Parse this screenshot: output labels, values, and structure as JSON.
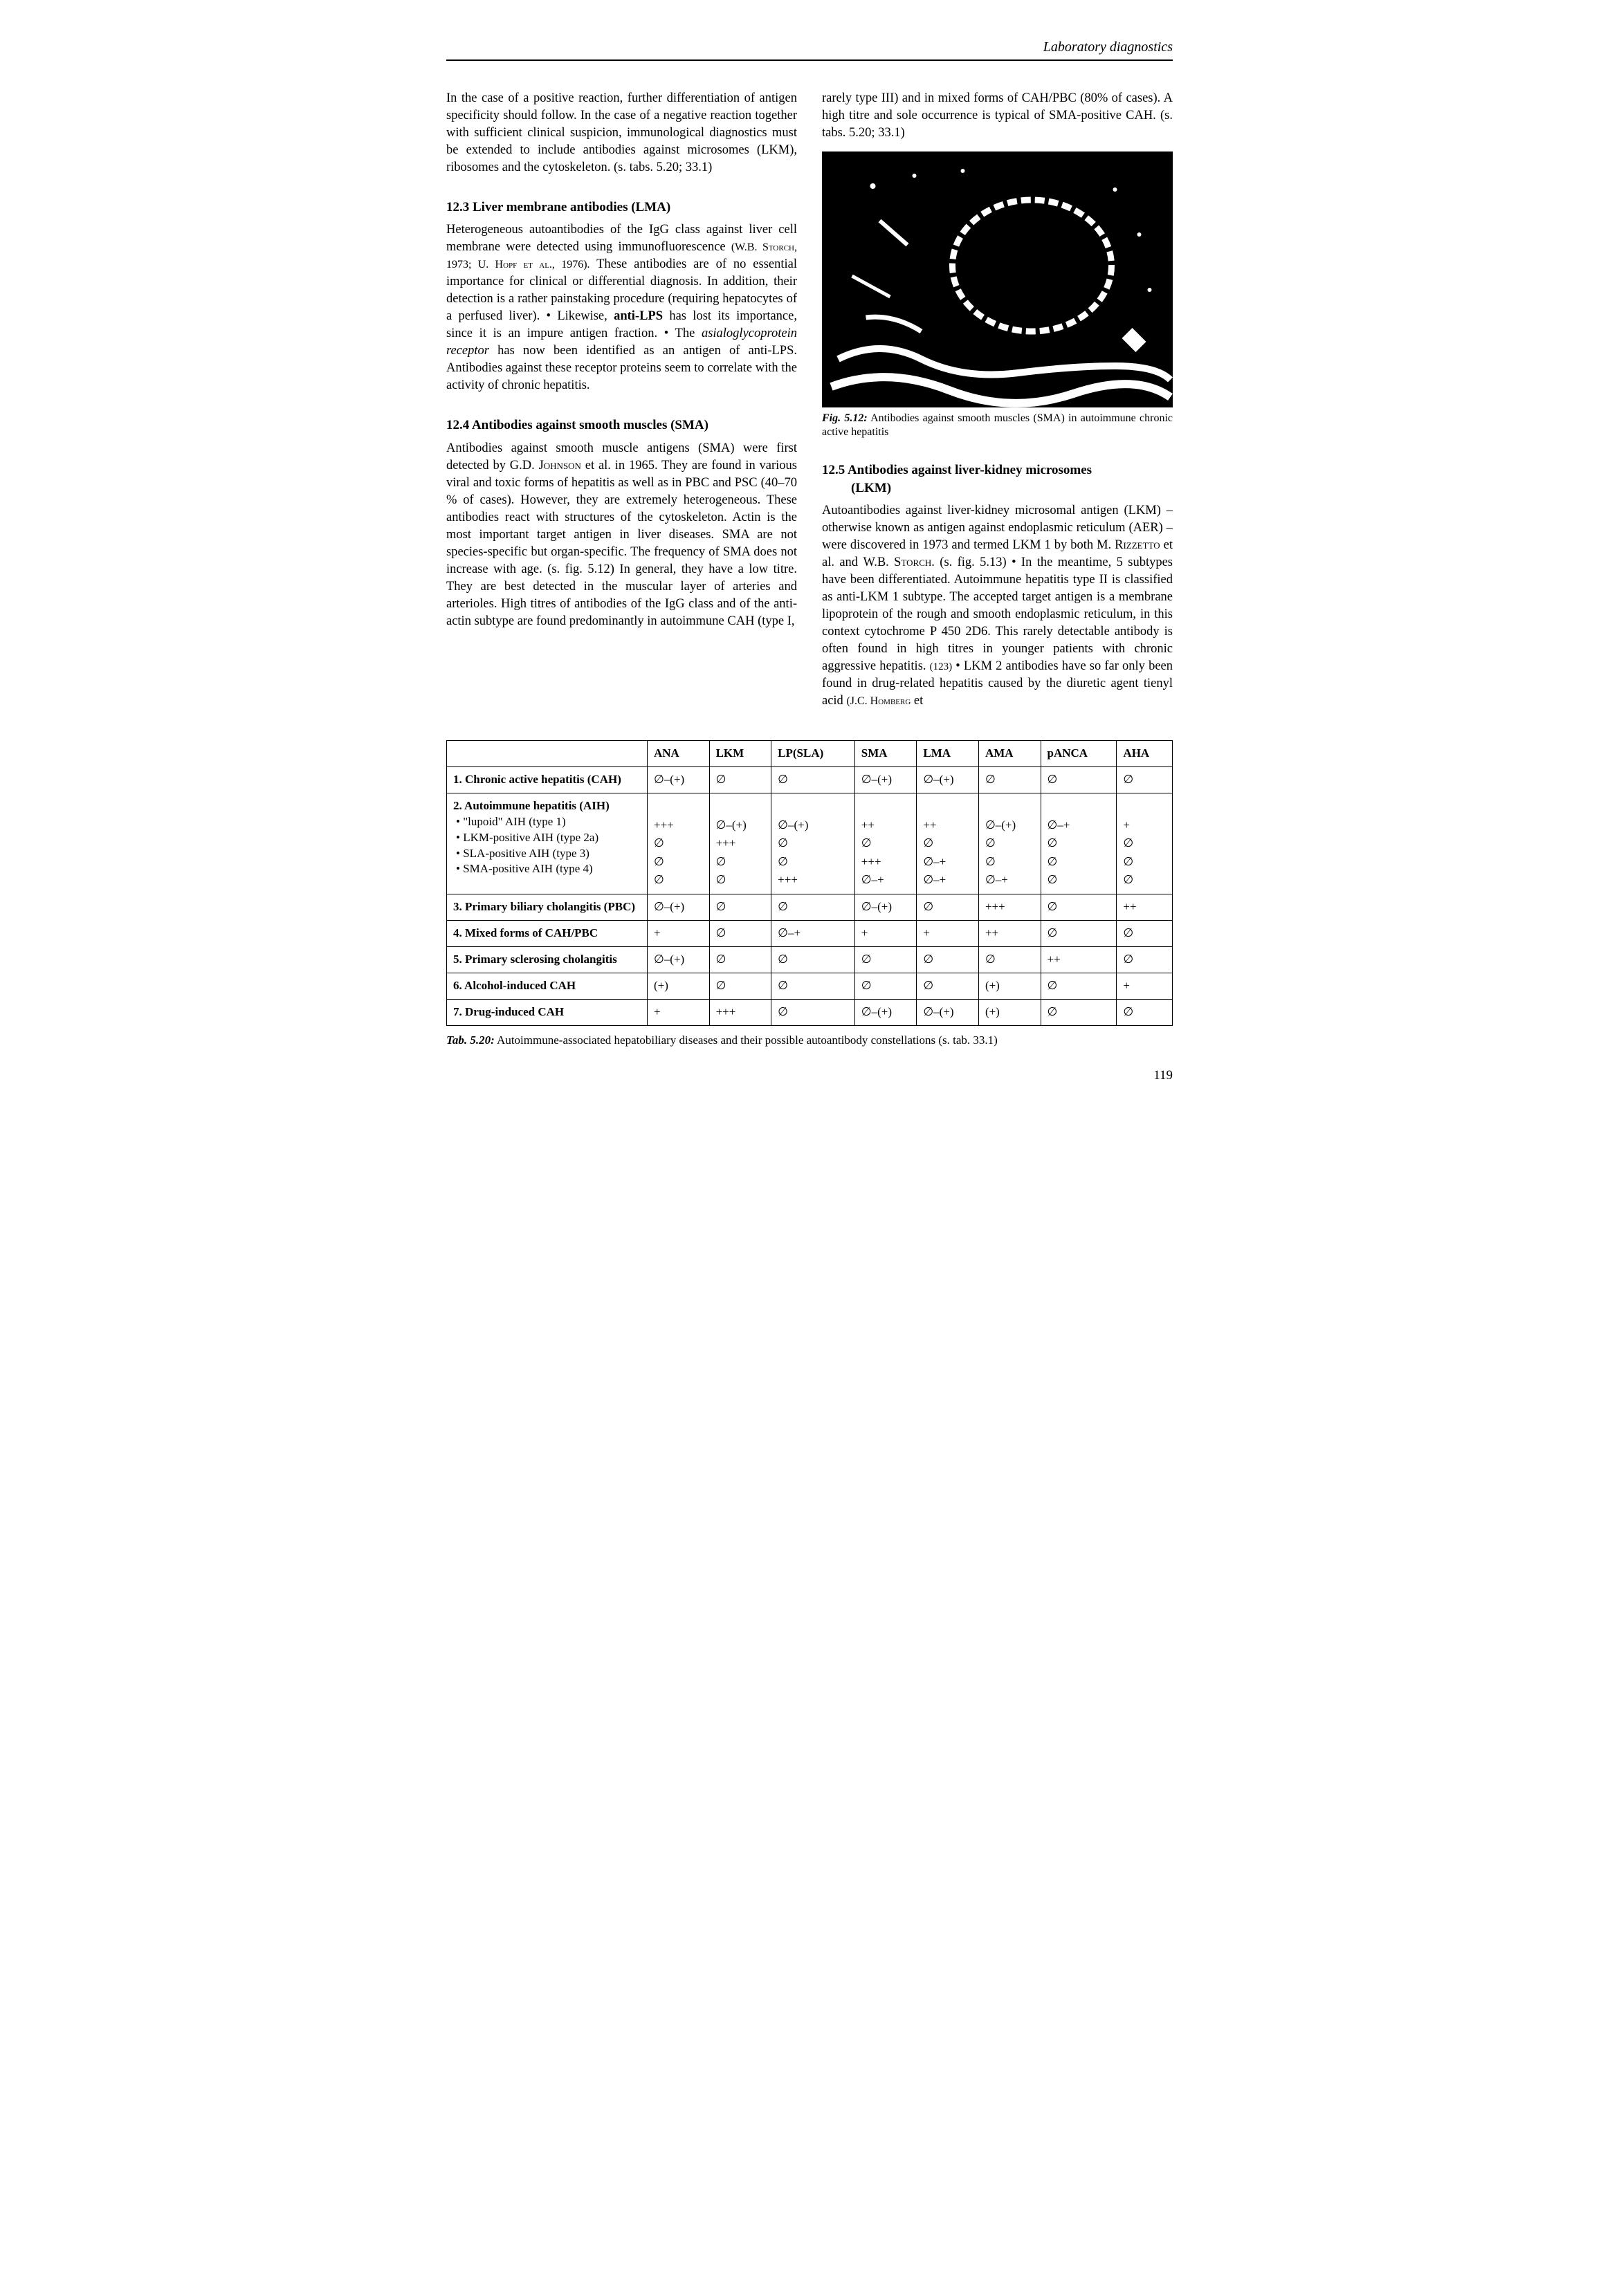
{
  "running_head": "Laboratory diagnostics",
  "page_number": "119",
  "left": {
    "intro": "In the case of a positive reaction, further differentiation of antigen specificity should follow. In the case of a negative reaction together with sufficient clinical suspicion, immunological diagnostics must be extended to include antibodies against microsomes (LKM), ribosomes and the cytoskeleton. (s. tabs. 5.20; 33.1)",
    "h1": "12.3  Liver membrane antibodies (LMA)",
    "p1a": "Heterogeneous autoantibodies of the IgG class against liver cell membrane were detected using immunofluorescence ",
    "p1_ref": "(W.B. Storch, 1973; U. Hopf et al., 1976).",
    "p1b": " These antibodies are of no essential importance for clinical or differential diagnosis. In addition, their detection is a rather painstaking procedure (requiring hepatocytes of a perfused liver).  •  Likewise, ",
    "p1_bold": "anti-LPS",
    "p1c": " has lost its importance, since it is an impure antigen fraction.  •  The ",
    "p1_em": "asialoglycoprotein receptor",
    "p1d": " has now been identified as an antigen of anti-LPS. Antibodies against these receptor proteins seem to correlate with the activity of chronic hepatitis.",
    "h2": "12.4  Antibodies against smooth muscles (SMA)",
    "p2a": "Antibodies against smooth muscle antigens (SMA) were first detected by ",
    "p2_ref": "G.D. Johnson",
    "p2b": " et al. in 1965. They are found in various viral and toxic forms of hepatitis as well as in PBC and PSC (40–70 % of cases). However, they are extremely heterogeneous. These antibodies react with structures of the cytoskeleton. Actin is the most important target antigen in liver diseases. SMA are not species-specific but organ-specific. The frequency of SMA does not increase with age. (s. fig. 5.12) In general, they have a low titre. They are best detected in the muscular layer of arteries and arterioles. High titres of antibodies of the IgG class and of the anti-actin subtype are found predominantly in autoimmune CAH (type I,"
  },
  "right": {
    "cont": "rarely type III) and in mixed forms of CAH/PBC (80% of cases). A high titre and sole occurrence is typical of SMA-positive CAH. (s. tabs. 5.20; 33.1)",
    "fig_label": "Fig. 5.12:",
    "fig_caption": " Antibodies against smooth muscles (SMA) in autoimmune chronic active hepatitis",
    "h3a": "12.5  Antibodies against liver-kidney microsomes",
    "h3b": "(LKM)",
    "p3a": "Autoantibodies against liver-kidney microsomal antigen (LKM) – otherwise known as antigen against endoplasmic reticulum (AER) – were discovered in 1973 and termed LKM 1 by both ",
    "p3_r1": "M. Rizzetto",
    "p3b": " et al. and ",
    "p3_r2": "W.B. Storch.",
    "p3c": " (s. fig. 5.13)  •  In the meantime, 5 subtypes have been differentiated. Autoimmune hepatitis type II is classified as anti-LKM 1 subtype. The accepted target antigen is a membrane lipoprotein of the rough and smooth endoplasmic reticulum, in this context cytochrome P 450 2D6. This rarely detectable antibody is often found in high titres in younger patients with chronic aggressive hepatitis. ",
    "p3_cite": "(123)",
    "p3d": "  •  LKM 2 antibodies have so far only been found in drug-related hepatitis caused by the diuretic agent tienyl acid ",
    "p3_r3": "(J.C. Homberg",
    "p3e": " et"
  },
  "table": {
    "caption_label": "Tab. 5.20:",
    "caption": " Autoimmune-associated hepatobiliary diseases and their possible autoantibody constellations (s. tab. 33.1)",
    "headers": [
      "",
      "ANA",
      "LKM",
      "LP(SLA)",
      "SMA",
      "LMA",
      "AMA",
      "pANCA",
      "AHA"
    ],
    "rows": [
      {
        "label": "1.  Chronic active hepatitis (CAH)",
        "cells": [
          "∅–(+)",
          "∅",
          "∅",
          "∅–(+)",
          "∅–(+)",
          "∅",
          "∅",
          "∅"
        ]
      },
      {
        "label": "2.  Autoimmune hepatitis (AIH)",
        "sub": [
          "•  \"lupoid\" AIH (type 1)",
          "•  LKM-positive AIH (type 2a)",
          "•  SLA-positive AIH (type 3)",
          "•  SMA-positive AIH (type 4)"
        ],
        "cells": [
          [
            "+++",
            "∅",
            "∅",
            "∅"
          ],
          [
            "∅–(+)",
            "+++",
            "∅",
            "∅"
          ],
          [
            "∅–(+)",
            "∅",
            "∅",
            "+++"
          ],
          [
            "++",
            "∅",
            "+++",
            "∅–+"
          ],
          [
            "++",
            "∅",
            "∅–+",
            "∅–+"
          ],
          [
            "∅–(+)",
            "∅",
            "∅",
            "∅–+"
          ],
          [
            "∅–+",
            "∅",
            "∅",
            "∅"
          ],
          [
            "+",
            "∅",
            "∅",
            "∅"
          ]
        ]
      },
      {
        "label": "3.  Primary biliary cholangitis (PBC)",
        "cells": [
          "∅–(+)",
          "∅",
          "∅",
          "∅–(+)",
          "∅",
          "+++",
          "∅",
          "++"
        ]
      },
      {
        "label": "4.  Mixed forms of CAH/PBC",
        "cells": [
          "+",
          "∅",
          "∅–+",
          "+",
          "+",
          "++",
          "∅",
          "∅"
        ]
      },
      {
        "label": "5.  Primary sclerosing cholangitis",
        "cells": [
          "∅–(+)",
          "∅",
          "∅",
          "∅",
          "∅",
          "∅",
          "++",
          "∅"
        ]
      },
      {
        "label": "6.  Alcohol-induced CAH",
        "cells": [
          "(+)",
          "∅",
          "∅",
          "∅",
          "∅",
          "(+)",
          "∅",
          "+"
        ]
      },
      {
        "label": "7.  Drug-induced CAH",
        "cells": [
          "+",
          "+++",
          "∅",
          "∅–(+)",
          "∅–(+)",
          "(+)",
          "∅",
          "∅"
        ]
      }
    ]
  }
}
